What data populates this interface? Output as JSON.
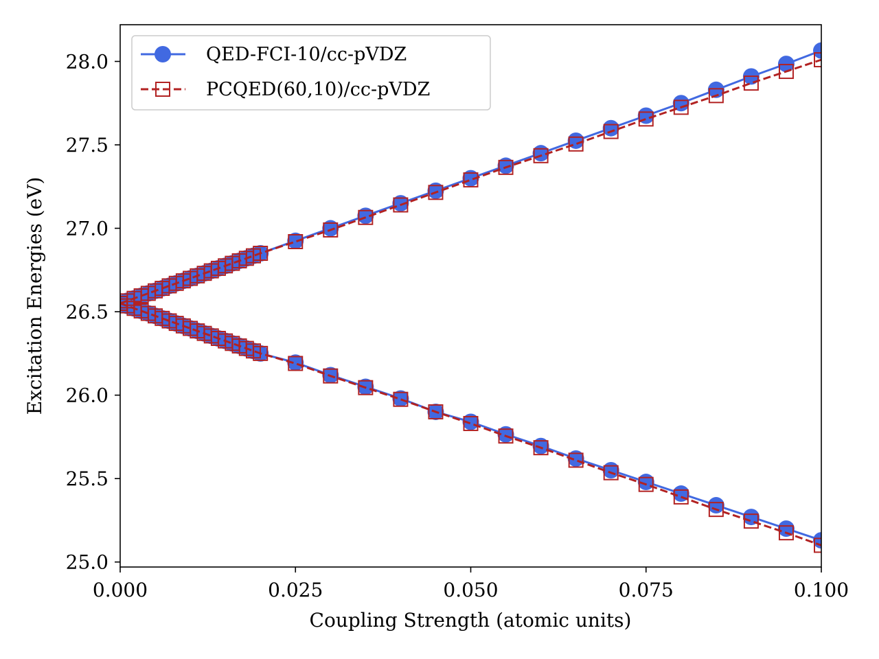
{
  "chart_data": {
    "type": "line",
    "title": "",
    "xlabel": "Coupling Strength (atomic units)",
    "ylabel": "Excitation Energies (eV)",
    "xlim": [
      0.0,
      0.1
    ],
    "ylim": [
      24.97,
      28.22
    ],
    "xticks": [
      "0.000",
      "0.025",
      "0.050",
      "0.075",
      "0.100"
    ],
    "yticks": [
      "25.0",
      "25.5",
      "26.0",
      "26.5",
      "27.0",
      "27.5",
      "28.0"
    ],
    "grid": false,
    "legend_position": "top-left",
    "x": [
      0.0,
      0.001,
      0.002,
      0.003,
      0.004,
      0.005,
      0.006,
      0.007,
      0.008,
      0.009,
      0.01,
      0.011,
      0.012,
      0.013,
      0.014,
      0.015,
      0.016,
      0.017,
      0.018,
      0.019,
      0.02,
      0.025,
      0.03,
      0.035,
      0.04,
      0.045,
      0.05,
      0.055,
      0.06,
      0.065,
      0.07,
      0.075,
      0.08,
      0.085,
      0.09,
      0.095,
      0.1
    ],
    "series": [
      {
        "name": "QED-FCI-10/cc-pVDZ",
        "color": "#4169e1",
        "marker": "circle",
        "linestyle": "solid",
        "upper": [
          26.55,
          26.565,
          26.58,
          26.595,
          26.61,
          26.625,
          26.64,
          26.655,
          26.67,
          26.685,
          26.7,
          26.715,
          26.73,
          26.745,
          26.76,
          26.775,
          26.79,
          26.805,
          26.82,
          26.835,
          26.85,
          26.925,
          27.0,
          27.075,
          27.15,
          27.225,
          27.3,
          27.375,
          27.45,
          27.525,
          27.6,
          27.675,
          27.75,
          27.83,
          27.91,
          27.985,
          28.065
        ],
        "lower": [
          26.55,
          26.535,
          26.52,
          26.505,
          26.49,
          26.475,
          26.46,
          26.445,
          26.43,
          26.415,
          26.4,
          26.385,
          26.37,
          26.355,
          26.34,
          26.325,
          26.31,
          26.295,
          26.28,
          26.265,
          26.25,
          26.195,
          26.12,
          26.05,
          25.98,
          25.9,
          25.84,
          25.765,
          25.695,
          25.62,
          25.55,
          25.48,
          25.41,
          25.34,
          25.27,
          25.2,
          25.13
        ]
      },
      {
        "name": "PCQED(60,10)/cc-pVDZ",
        "color": "#b22222",
        "marker": "open-square",
        "linestyle": "dashed",
        "upper": [
          26.55,
          26.565,
          26.58,
          26.595,
          26.61,
          26.625,
          26.64,
          26.655,
          26.67,
          26.685,
          26.7,
          26.715,
          26.73,
          26.745,
          26.76,
          26.775,
          26.79,
          26.805,
          26.82,
          26.835,
          26.85,
          26.92,
          26.99,
          27.065,
          27.14,
          27.215,
          27.29,
          27.365,
          27.435,
          27.505,
          27.58,
          27.655,
          27.725,
          27.795,
          27.87,
          27.94,
          28.01
        ],
        "lower": [
          26.55,
          26.535,
          26.52,
          26.505,
          26.49,
          26.475,
          26.46,
          26.445,
          26.43,
          26.415,
          26.4,
          26.385,
          26.37,
          26.355,
          26.34,
          26.325,
          26.31,
          26.295,
          26.28,
          26.265,
          26.25,
          26.19,
          26.115,
          26.045,
          25.975,
          25.9,
          25.83,
          25.755,
          25.685,
          25.61,
          25.535,
          25.465,
          25.39,
          25.315,
          25.245,
          25.175,
          25.1
        ]
      }
    ]
  }
}
